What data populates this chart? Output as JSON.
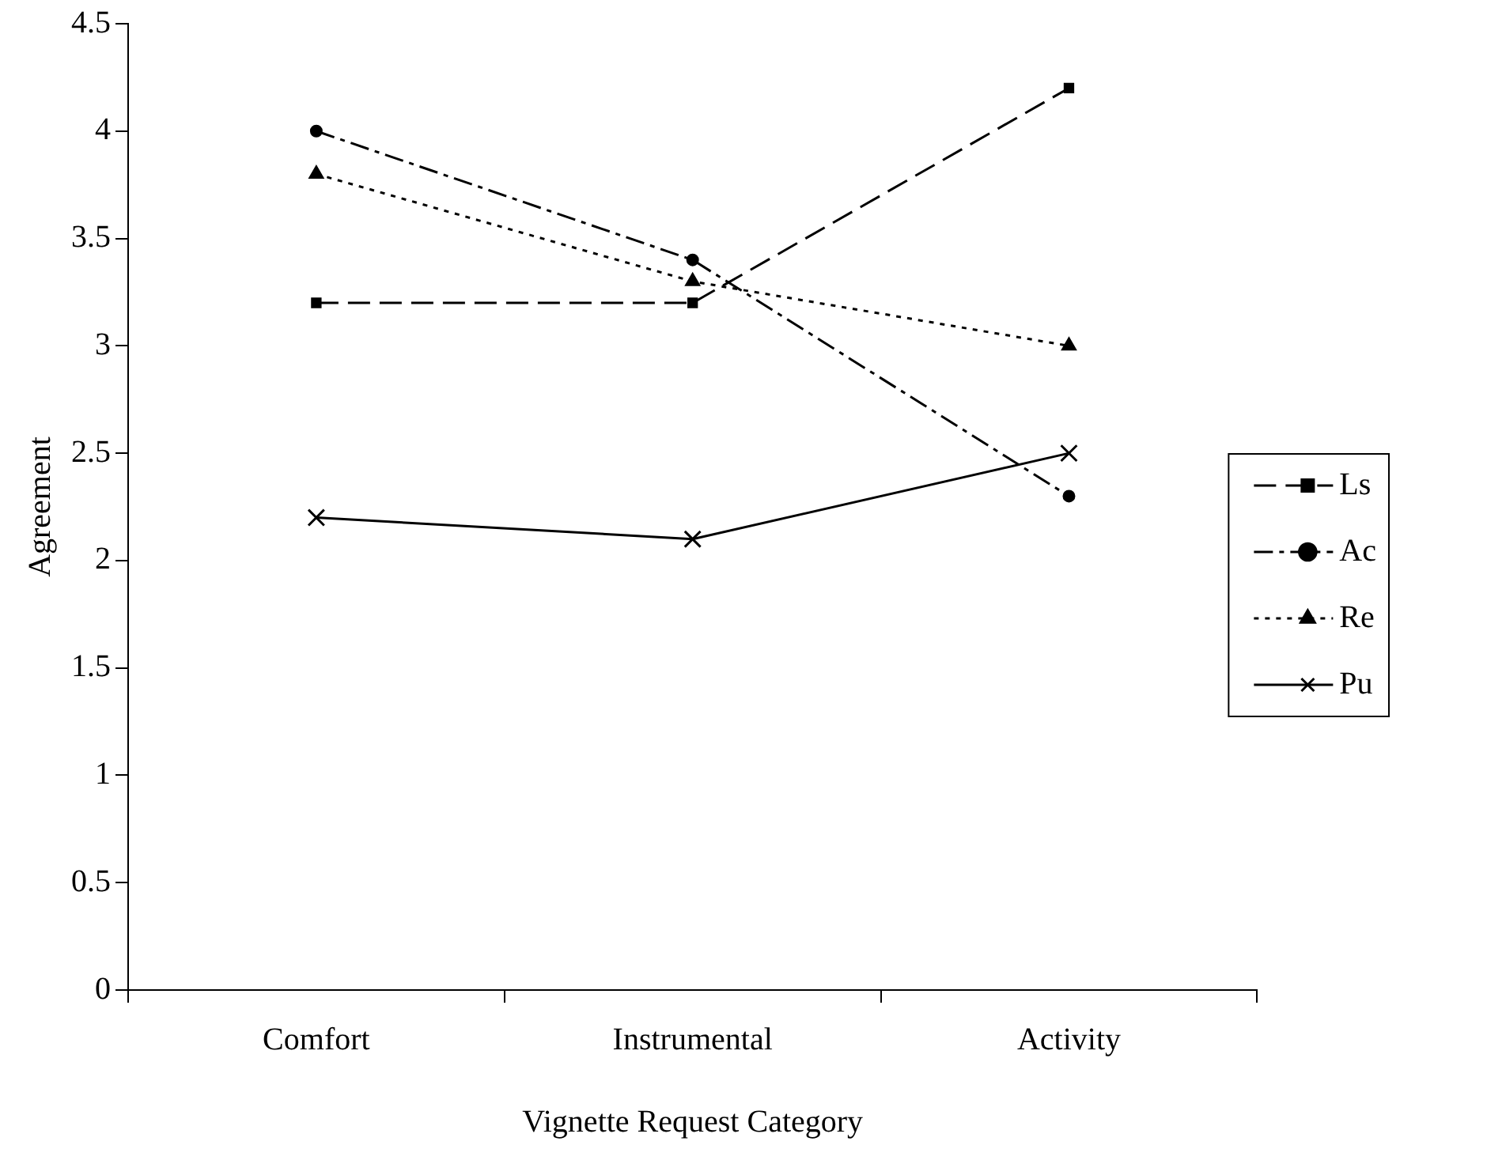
{
  "chart_data": {
    "type": "line",
    "xlabel": "Vignette Request Category",
    "ylabel": "Agreement",
    "categories": [
      "Comfort",
      "Instrumental",
      "Activity"
    ],
    "series": [
      {
        "name": "Ls",
        "color": "#000000",
        "values": [
          3.2,
          3.2,
          4.2
        ],
        "marker": "square",
        "line_style": "dashed"
      },
      {
        "name": "Ac",
        "color": "#000000",
        "values": [
          4.0,
          3.4,
          2.3
        ],
        "marker": "circle",
        "line_style": "dashdot"
      },
      {
        "name": "Re",
        "color": "#000000",
        "values": [
          3.8,
          3.3,
          3.0
        ],
        "marker": "triangle",
        "line_style": "dotted"
      },
      {
        "name": "Pu",
        "color": "#000000",
        "values": [
          2.2,
          2.1,
          2.5
        ],
        "marker": "cross",
        "line_style": "solid"
      }
    ],
    "ylim": [
      0,
      4.5
    ],
    "yticks": [
      0,
      0.5,
      1,
      1.5,
      2,
      2.5,
      3,
      3.5,
      4,
      4.5
    ],
    "grid": false,
    "legend": "right"
  }
}
